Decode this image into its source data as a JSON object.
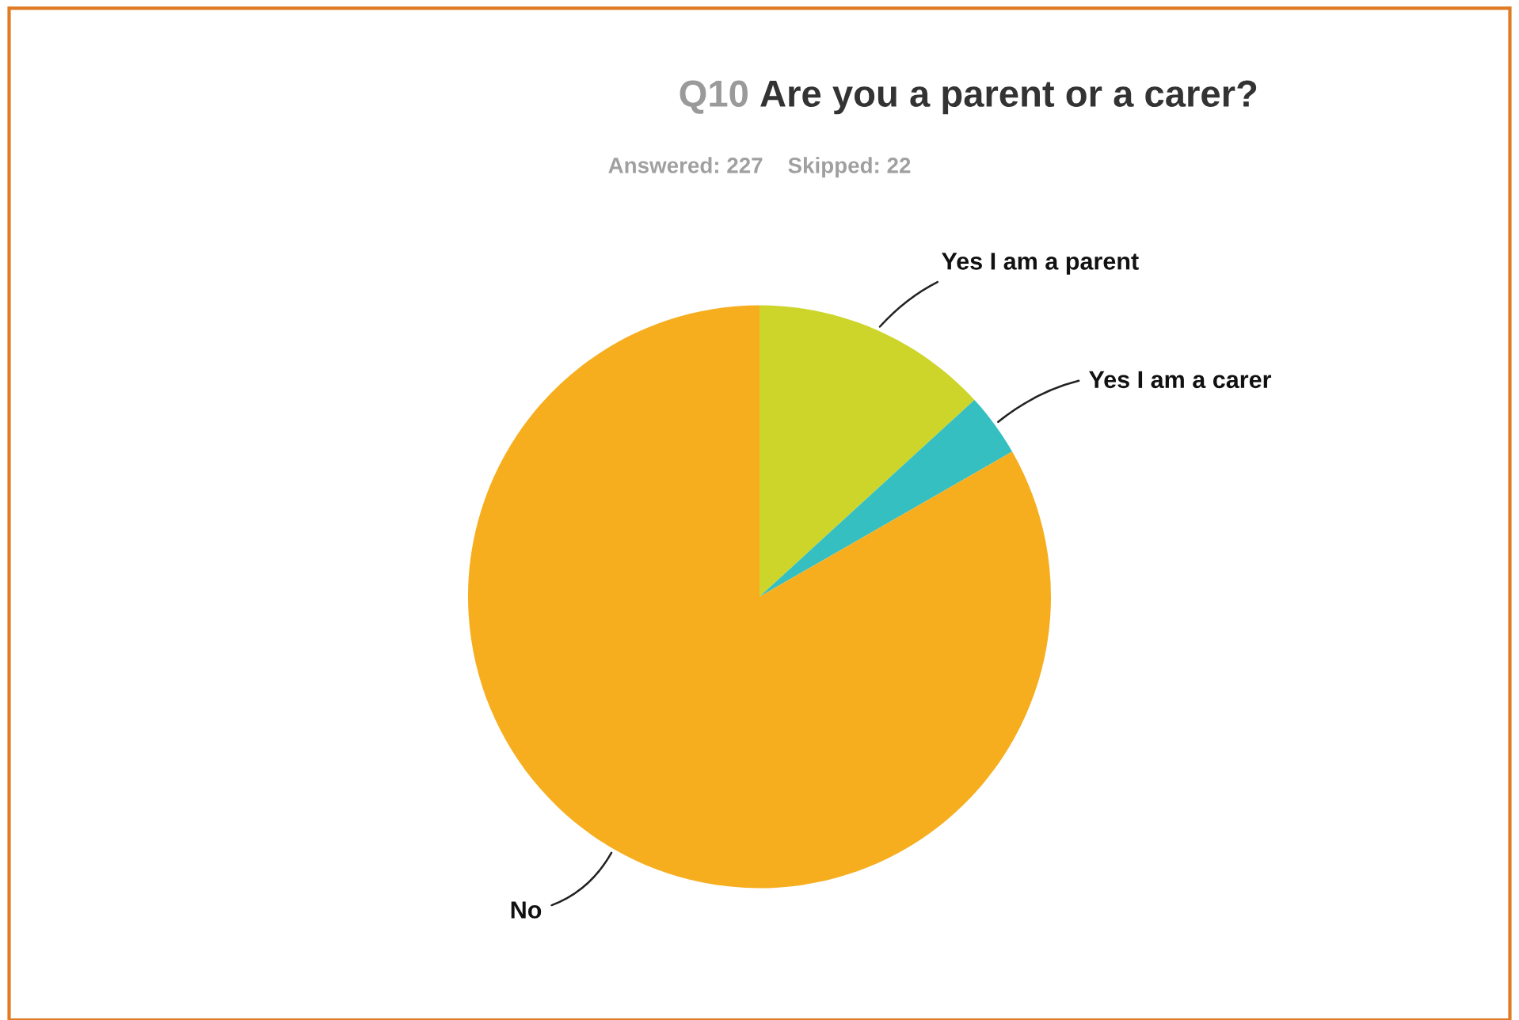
{
  "chart_data": {
    "type": "pie",
    "title": "Q10 Are you a parent or a carer?",
    "subtitle": "Answered: 227    Skipped: 22",
    "categories": [
      "Yes I am a parent",
      "Yes I am a carer",
      "No"
    ],
    "values": [
      13.2,
      3.5,
      83.3
    ],
    "colors": [
      "#cdd52a",
      "#35bfc0",
      "#f6ae1f"
    ],
    "legend": false
  }
}
